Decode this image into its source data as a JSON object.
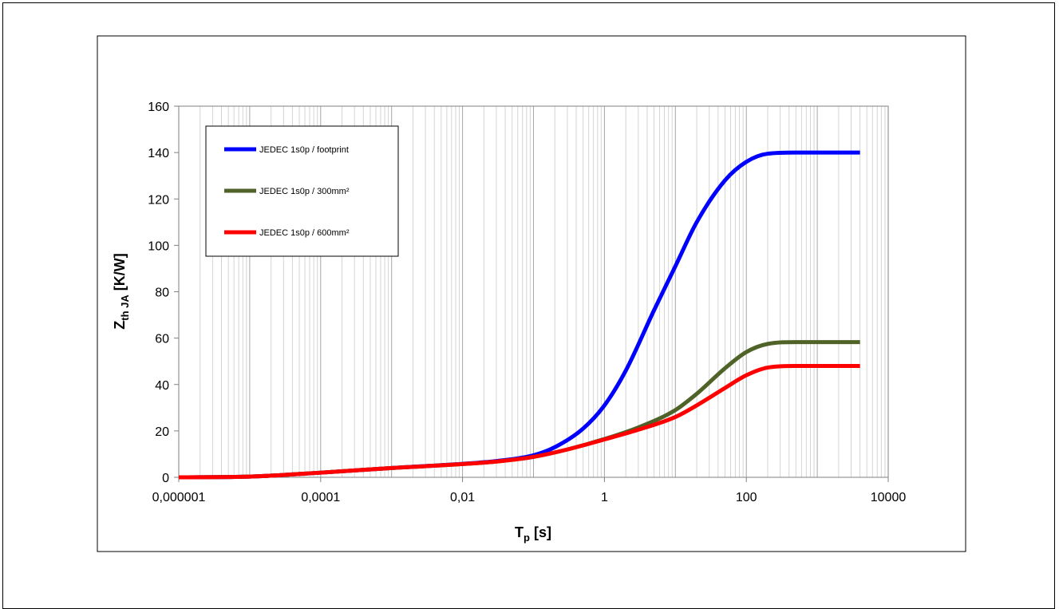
{
  "chart_data": {
    "type": "line",
    "x_scale": "log",
    "xlim": [
      1e-06,
      10000
    ],
    "ylim": [
      0,
      160
    ],
    "x_ticks": [
      {
        "value": 1e-06,
        "label": "0,000001"
      },
      {
        "value": 0.0001,
        "label": "0,0001"
      },
      {
        "value": 0.01,
        "label": "0,01"
      },
      {
        "value": 1,
        "label": "1"
      },
      {
        "value": 100,
        "label": "100"
      },
      {
        "value": 10000,
        "label": "10000"
      }
    ],
    "y_ticks": [
      0,
      20,
      40,
      60,
      80,
      100,
      120,
      140,
      160
    ],
    "grid": "vertical major and minor",
    "xlabel": {
      "main": "T",
      "sub": "p",
      "rest": " [s]"
    },
    "ylabel": {
      "main": "Z",
      "sub": "th JA",
      "rest": "  [K/W]"
    },
    "legend_position": "top-left",
    "series": [
      {
        "name": "JEDEC 1s0p / footprint",
        "color": "#0000ff",
        "x": [
          1e-06,
          1e-05,
          0.0001,
          0.001,
          0.01,
          0.03,
          0.1,
          0.2,
          0.5,
          1,
          2,
          5,
          10,
          20,
          50,
          100,
          200,
          500,
          1000,
          4000
        ],
        "y": [
          0,
          0.3,
          2,
          4,
          5.8,
          7,
          9.5,
          13,
          21,
          31,
          46,
          72,
          91,
          110,
          128,
          136,
          139.5,
          140,
          140,
          140
        ]
      },
      {
        "name": "JEDEC 1s0p / 300mm²",
        "color": "#4f6228",
        "x": [
          1e-06,
          1e-05,
          0.0001,
          0.001,
          0.01,
          0.03,
          0.1,
          0.3,
          1,
          3,
          10,
          20,
          50,
          100,
          200,
          500,
          1000,
          4000
        ],
        "y": [
          0,
          0.3,
          2,
          4,
          5.7,
          6.8,
          8.8,
          12,
          16.5,
          21.5,
          29,
          36,
          47,
          54,
          57.5,
          58.3,
          58.3,
          58.3
        ]
      },
      {
        "name": "JEDEC 1s0p / 600mm²",
        "color": "#ff0000",
        "x": [
          1e-06,
          1e-05,
          0.0001,
          0.001,
          0.01,
          0.03,
          0.1,
          0.3,
          1,
          3,
          10,
          20,
          50,
          100,
          200,
          500,
          1000,
          4000
        ],
        "y": [
          0,
          0.3,
          2,
          4,
          5.7,
          6.8,
          8.8,
          12,
          16.3,
          20.5,
          26,
          31,
          38.5,
          44,
          47.3,
          48,
          48,
          48
        ]
      }
    ]
  }
}
